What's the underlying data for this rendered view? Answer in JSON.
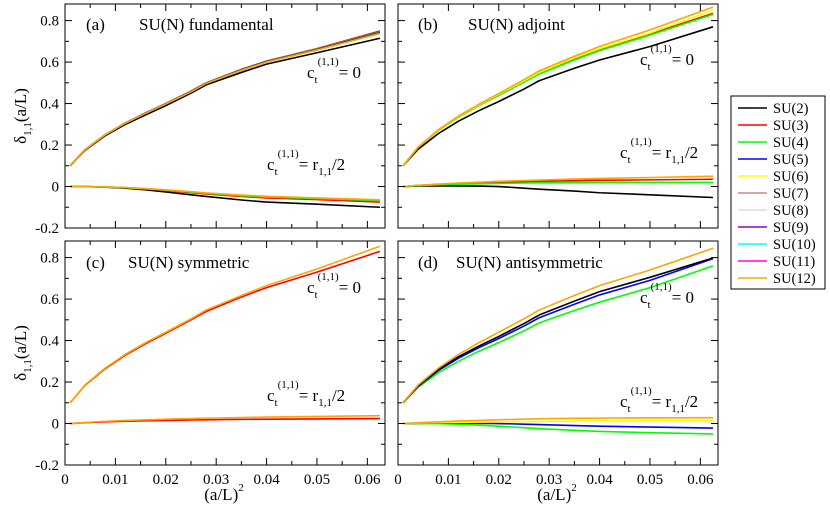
{
  "chart_data": {
    "type": "line",
    "xlabel": "(a/L)",
    "xlabel_sup": "2",
    "ylabel_main": "δ",
    "ylabel_sub": "1,1",
    "ylabel_rest": "(a/L)",
    "xlim": [
      0,
      0.0635
    ],
    "ylim": [
      -0.2,
      0.88
    ],
    "x_ticks": [
      "0",
      "0.01",
      "0.02",
      "0.03",
      "0.04",
      "0.05",
      "0.06"
    ],
    "y_ticks": [
      "-0.2",
      "0",
      "0.2",
      "0.4",
      "0.6",
      "0.8"
    ],
    "x": [
      0.001,
      0.004,
      0.008,
      0.012,
      0.016,
      0.02,
      0.025,
      0.028,
      0.035,
      0.04,
      0.05,
      0.0625
    ],
    "legend": [
      {
        "name": "SU(2)",
        "color": "#000000"
      },
      {
        "name": "SU(3)",
        "color": "#ff0000"
      },
      {
        "name": "SU(4)",
        "color": "#00ff00"
      },
      {
        "name": "SU(5)",
        "color": "#0000ff"
      },
      {
        "name": "SU(6)",
        "color": "#ffff00"
      },
      {
        "name": "SU(7)",
        "color": "#bc8f8f"
      },
      {
        "name": "SU(8)",
        "color": "#dcdcdc"
      },
      {
        "name": "SU(9)",
        "color": "#9400d3"
      },
      {
        "name": "SU(10)",
        "color": "#00ffff"
      },
      {
        "name": "SU(11)",
        "color": "#ff00ff"
      },
      {
        "name": "SU(12)",
        "color": "#ffa500"
      }
    ],
    "panels": [
      {
        "label": "(a)",
        "title": "SU(N)  fundamental",
        "show_x_ticks": false,
        "ann_upper": {
          "c": "c",
          "sub": "t",
          "sup": "(1,1)",
          "rhs": "= 0"
        },
        "ann_lower": {
          "c": "c",
          "sub": "t",
          "sup": "(1,1)",
          "rhs": "= r",
          "rhs_sub": "1,1",
          "rhs_tail": "/2"
        },
        "series_upper": [
          {
            "name": "SU(2)",
            "values": [
              0.1,
              0.175,
              0.245,
              0.3,
              0.345,
              0.39,
              0.45,
              0.49,
              0.55,
              0.59,
              0.645,
              0.715
            ]
          },
          {
            "name": "SU(3)",
            "values": [
              0.1,
              0.178,
              0.25,
              0.307,
              0.355,
              0.4,
              0.46,
              0.5,
              0.565,
              0.605,
              0.665,
              0.75
            ]
          },
          {
            "name": "SU(4)",
            "values": [
              0.1,
              0.178,
              0.25,
              0.306,
              0.354,
              0.4,
              0.458,
              0.499,
              0.563,
              0.603,
              0.662,
              0.745
            ]
          },
          {
            "name": "SU(5)",
            "values": [
              0.1,
              0.178,
              0.25,
              0.306,
              0.354,
              0.399,
              0.457,
              0.498,
              0.562,
              0.602,
              0.66,
              0.742
            ]
          },
          {
            "name": "SU(12)",
            "values": [
              0.1,
              0.178,
              0.25,
              0.306,
              0.353,
              0.398,
              0.456,
              0.497,
              0.56,
              0.6,
              0.658,
              0.738
            ]
          }
        ],
        "series_lower": [
          {
            "name": "SU(2)",
            "values": [
              0.0,
              0.0,
              -0.003,
              -0.008,
              -0.016,
              -0.026,
              -0.04,
              -0.048,
              -0.065,
              -0.075,
              -0.085,
              -0.1
            ]
          },
          {
            "name": "SU(3)",
            "values": [
              0.0,
              0.0,
              -0.002,
              -0.006,
              -0.012,
              -0.019,
              -0.03,
              -0.036,
              -0.048,
              -0.055,
              -0.063,
              -0.075
            ]
          },
          {
            "name": "SU(4)",
            "values": [
              0.0,
              0.0,
              -0.002,
              -0.005,
              -0.011,
              -0.017,
              -0.027,
              -0.033,
              -0.044,
              -0.05,
              -0.058,
              -0.068
            ]
          },
          {
            "name": "SU(12)",
            "values": [
              0.0,
              0.0,
              -0.002,
              -0.005,
              -0.01,
              -0.016,
              -0.025,
              -0.031,
              -0.041,
              -0.047,
              -0.055,
              -0.064
            ]
          }
        ]
      },
      {
        "label": "(b)",
        "title": "SU(N)  adjoint",
        "show_x_ticks": false,
        "ann_upper": {
          "c": "c",
          "sub": "t",
          "sup": "(1,1)",
          "rhs": "= 0"
        },
        "ann_lower": {
          "c": "c",
          "sub": "t",
          "sup": "(1,1)",
          "rhs": "= r",
          "rhs_sub": "1,1",
          "rhs_tail": "/2"
        },
        "series_upper": [
          {
            "name": "SU(2)",
            "values": [
              0.1,
              0.18,
              0.255,
              0.315,
              0.365,
              0.41,
              0.47,
              0.51,
              0.57,
              0.61,
              0.675,
              0.77
            ]
          },
          {
            "name": "SU(3)",
            "values": [
              0.1,
              0.19,
              0.27,
              0.335,
              0.39,
              0.44,
              0.505,
              0.545,
              0.615,
              0.66,
              0.735,
              0.835
            ]
          },
          {
            "name": "SU(4)",
            "values": [
              0.1,
              0.19,
              0.27,
              0.335,
              0.39,
              0.44,
              0.503,
              0.542,
              0.61,
              0.655,
              0.73,
              0.83
            ]
          },
          {
            "name": "SU(6)",
            "values": [
              0.1,
              0.19,
              0.272,
              0.338,
              0.393,
              0.445,
              0.51,
              0.55,
              0.62,
              0.665,
              0.74,
              0.85
            ]
          },
          {
            "name": "SU(12)",
            "values": [
              0.1,
              0.19,
              0.274,
              0.34,
              0.396,
              0.448,
              0.515,
              0.557,
              0.628,
              0.675,
              0.755,
              0.865
            ]
          }
        ],
        "series_lower": [
          {
            "name": "SU(2)",
            "values": [
              0.0,
              0.002,
              0.003,
              0.003,
              0.002,
              0.0,
              -0.008,
              -0.013,
              -0.022,
              -0.03,
              -0.04,
              -0.053
            ]
          },
          {
            "name": "SU(3)",
            "values": [
              0.0,
              0.005,
              0.01,
              0.014,
              0.017,
              0.02,
              0.023,
              0.025,
              0.028,
              0.03,
              0.032,
              0.035
            ]
          },
          {
            "name": "SU(4)",
            "values": [
              0.0,
              0.004,
              0.008,
              0.011,
              0.013,
              0.015,
              0.017,
              0.018,
              0.019,
              0.02,
              0.02,
              0.02
            ]
          },
          {
            "name": "SU(12)",
            "values": [
              0.0,
              0.006,
              0.012,
              0.017,
              0.021,
              0.025,
              0.029,
              0.031,
              0.036,
              0.039,
              0.043,
              0.05
            ]
          }
        ]
      },
      {
        "label": "(c)",
        "title": "SU(N)  symmetric",
        "show_x_ticks": true,
        "ann_upper": {
          "c": "c",
          "sub": "t",
          "sup": "(1,1)",
          "rhs": "= 0"
        },
        "ann_lower": {
          "c": "c",
          "sub": "t",
          "sup": "(1,1)",
          "rhs": "= r",
          "rhs_sub": "1,1",
          "rhs_tail": "/2"
        },
        "series_upper": [
          {
            "name": "SU(3)",
            "values": [
              0.1,
              0.185,
              0.265,
              0.33,
              0.385,
              0.435,
              0.5,
              0.54,
              0.61,
              0.655,
              0.73,
              0.83
            ]
          },
          {
            "name": "SU(12)",
            "values": [
              0.1,
              0.187,
              0.268,
              0.334,
              0.39,
              0.44,
              0.505,
              0.547,
              0.617,
              0.665,
              0.745,
              0.855
            ]
          }
        ],
        "series_lower": [
          {
            "name": "SU(3)",
            "values": [
              0.0,
              0.004,
              0.008,
              0.011,
              0.013,
              0.015,
              0.017,
              0.018,
              0.02,
              0.021,
              0.022,
              0.024
            ]
          },
          {
            "name": "SU(12)",
            "values": [
              0.0,
              0.005,
              0.011,
              0.015,
              0.018,
              0.021,
              0.024,
              0.026,
              0.029,
              0.031,
              0.034,
              0.038
            ]
          }
        ]
      },
      {
        "label": "(d)",
        "title": "SU(N)  antisymmetric",
        "show_x_ticks": true,
        "ann_upper": {
          "c": "c",
          "sub": "t",
          "sup": "(1,1)",
          "rhs": "= 0"
        },
        "ann_lower": {
          "c": "c",
          "sub": "t",
          "sup": "(1,1)",
          "rhs": "= r",
          "rhs_sub": "1,1",
          "rhs_tail": "/2"
        },
        "series_upper": [
          {
            "name": "SU(4)",
            "values": [
              0.1,
              0.175,
              0.245,
              0.3,
              0.348,
              0.39,
              0.447,
              0.485,
              0.545,
              0.585,
              0.655,
              0.76
            ]
          },
          {
            "name": "SU(5)",
            "values": [
              0.1,
              0.18,
              0.255,
              0.315,
              0.365,
              0.41,
              0.47,
              0.51,
              0.575,
              0.62,
              0.69,
              0.795
            ]
          },
          {
            "name": "SU(2)",
            "values": [
              0.1,
              0.183,
              0.26,
              0.322,
              0.373,
              0.42,
              0.482,
              0.523,
              0.59,
              0.636,
              0.705,
              0.798
            ]
          },
          {
            "name": "SU(12)",
            "values": [
              0.1,
              0.186,
              0.267,
              0.333,
              0.389,
              0.44,
              0.505,
              0.547,
              0.617,
              0.665,
              0.74,
              0.845
            ]
          }
        ],
        "series_lower": [
          {
            "name": "SU(4)",
            "values": [
              0.0,
              0.0,
              0.0,
              -0.003,
              -0.008,
              -0.013,
              -0.02,
              -0.025,
              -0.033,
              -0.038,
              -0.044,
              -0.05
            ]
          },
          {
            "name": "SU(5)",
            "values": [
              0.0,
              0.001,
              0.002,
              0.002,
              0.001,
              0.0,
              -0.003,
              -0.005,
              -0.01,
              -0.013,
              -0.017,
              -0.022
            ]
          },
          {
            "name": "SU(6)",
            "values": [
              0.0,
              0.002,
              0.004,
              0.006,
              0.007,
              0.008,
              0.009,
              0.01,
              0.012,
              0.013,
              0.014,
              0.015
            ]
          },
          {
            "name": "SU(12)",
            "values": [
              0.0,
              0.004,
              0.008,
              0.012,
              0.015,
              0.018,
              0.021,
              0.023,
              0.025,
              0.026,
              0.027,
              0.028
            ]
          }
        ]
      }
    ]
  }
}
